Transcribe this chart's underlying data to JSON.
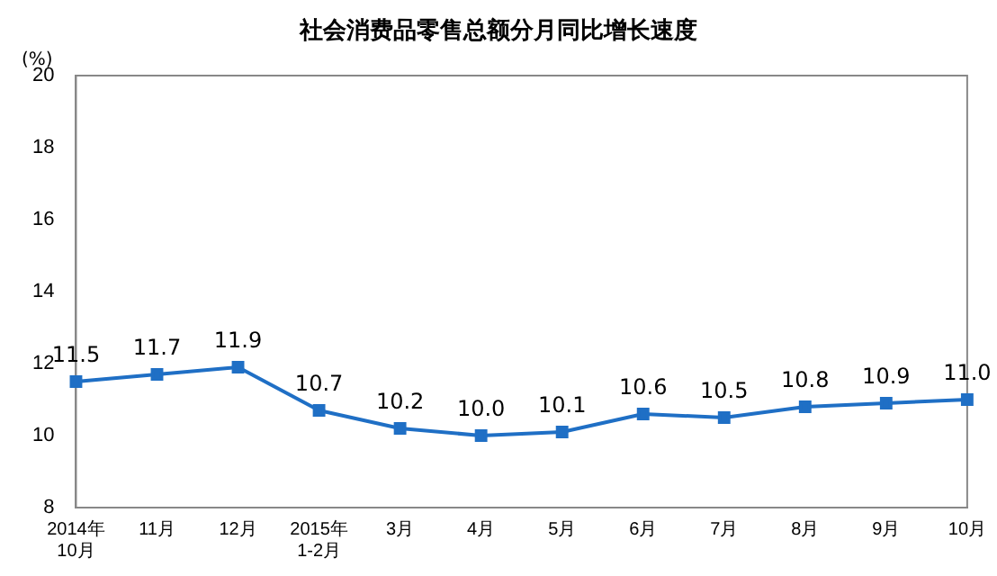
{
  "chart_data": {
    "type": "line",
    "title": "社会消费品零售总额分月同比增长速度",
    "ylabel": "(%)",
    "categories": [
      "2014年\n10月",
      "11月",
      "12月",
      "2015年\n1-2月",
      "3月",
      "4月",
      "5月",
      "6月",
      "7月",
      "8月",
      "9月",
      "10月"
    ],
    "series": [
      {
        "color": "#1f6fc5",
        "values": [
          11.5,
          11.7,
          11.9,
          10.7,
          10.2,
          10.0,
          10.1,
          10.6,
          10.5,
          10.8,
          10.9,
          11.0
        ],
        "value_labels": [
          "11.5",
          "11.7",
          "11.9",
          "10.7",
          "10.2",
          "10.0",
          "10.1",
          "10.6",
          "10.5",
          "10.8",
          "10.9",
          "11.0"
        ]
      }
    ],
    "ylim": [
      8,
      20
    ],
    "yticks": [
      8,
      10,
      12,
      14,
      16,
      18,
      20
    ],
    "grid": false,
    "legend": false,
    "marker": "square",
    "line_style": "solid"
  }
}
